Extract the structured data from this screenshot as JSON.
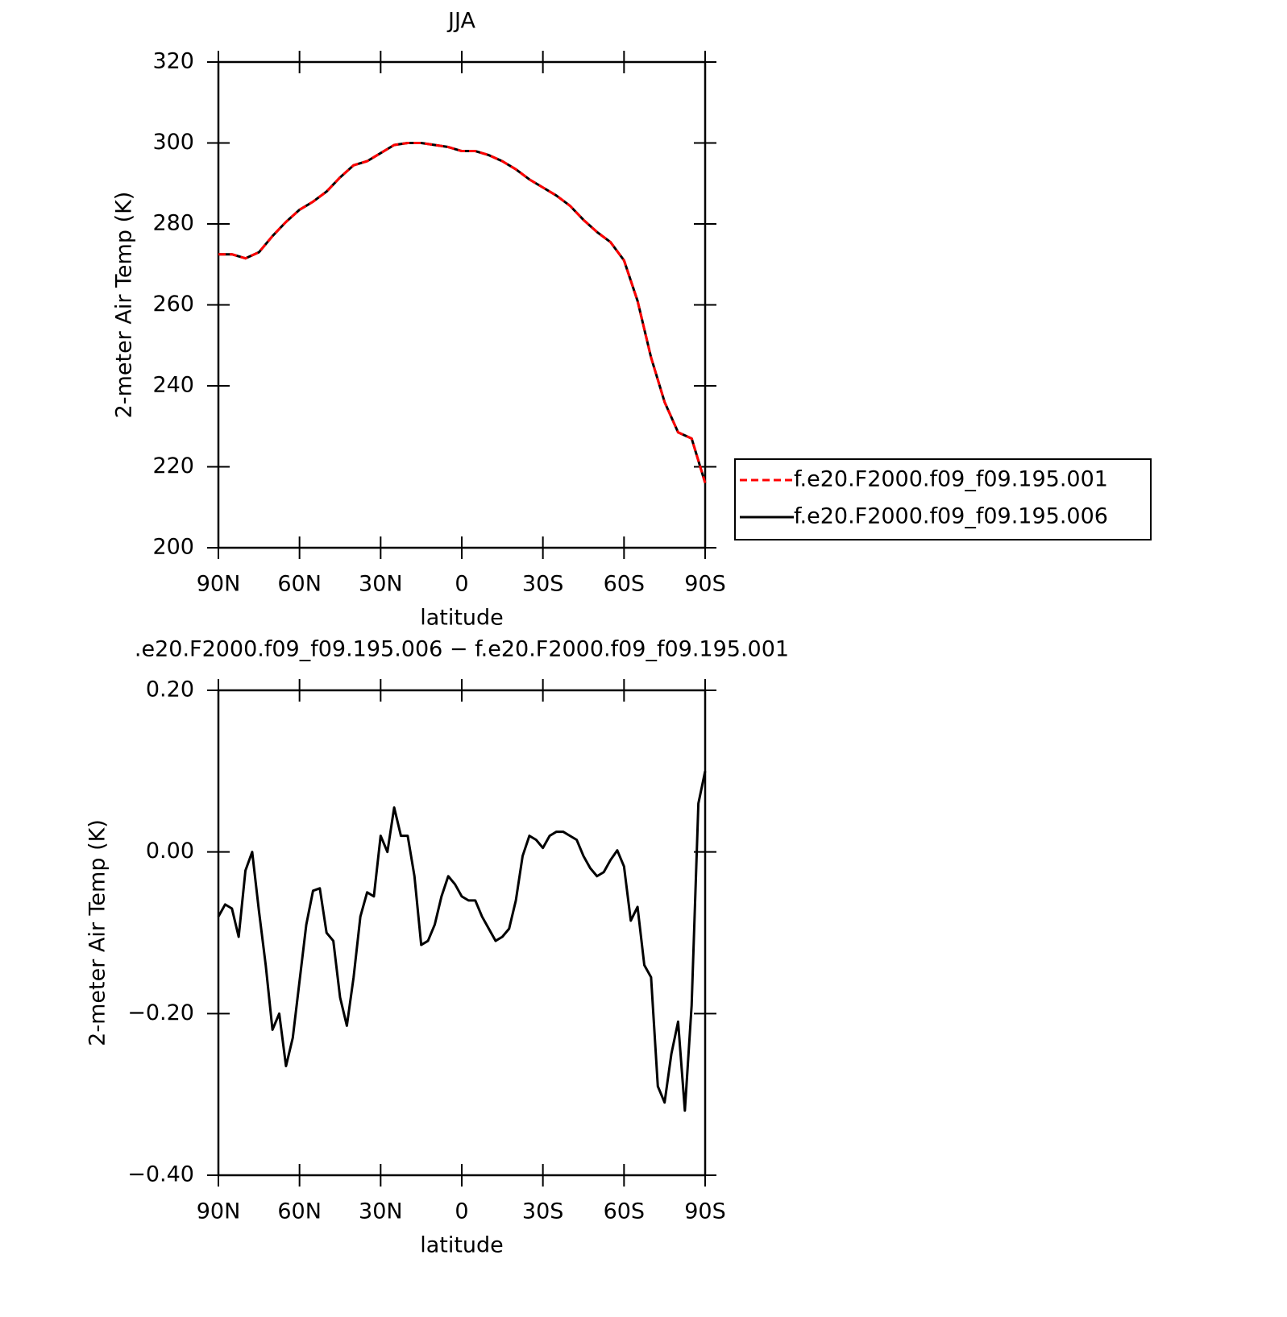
{
  "chart_data": [
    {
      "type": "line",
      "title": "JJA",
      "ylabel": "2-meter Air Temp (K)",
      "xlabel": "latitude",
      "x": [
        90,
        85,
        80,
        75,
        70,
        65,
        60,
        55,
        50,
        45,
        40,
        35,
        30,
        25,
        20,
        15,
        10,
        5,
        0,
        -5,
        -10,
        -15,
        -20,
        -25,
        -30,
        -35,
        -40,
        -45,
        -50,
        -55,
        -60,
        -65,
        -70,
        -75,
        -80,
        -85,
        -90
      ],
      "series": [
        {
          "name": "f.e20.F2000.f09_f09.195.001",
          "color": "#ff0000",
          "dash": true,
          "values": [
            272.5,
            272.5,
            271.5,
            273,
            277,
            280.5,
            283.5,
            285.5,
            288,
            291.5,
            294.5,
            295.5,
            297.5,
            299.5,
            300,
            300,
            299.5,
            299,
            298,
            298,
            297,
            295.5,
            293.5,
            291,
            289,
            287,
            284.5,
            281,
            278,
            275.5,
            271,
            261,
            247,
            236,
            228.5,
            227,
            216
          ]
        },
        {
          "name": "f.e20.F2000.f09_f09.195.006",
          "color": "#000000",
          "dash": false,
          "values": [
            272.5,
            272.5,
            271.5,
            273,
            277,
            280.5,
            283.5,
            285.5,
            288,
            291.5,
            294.5,
            295.5,
            297.5,
            299.5,
            300,
            300,
            299.5,
            299,
            298,
            298,
            297,
            295.5,
            293.5,
            291,
            289,
            287,
            284.5,
            281,
            278,
            275.5,
            271,
            261,
            247,
            236,
            228.5,
            227,
            216
          ]
        }
      ],
      "xlim": [
        90,
        -90
      ],
      "xticks": [
        {
          "value": 90,
          "label": "90N"
        },
        {
          "value": 60,
          "label": "60N"
        },
        {
          "value": 30,
          "label": "30N"
        },
        0,
        {
          "value": -30,
          "label": "30S"
        },
        {
          "value": -60,
          "label": "60S"
        },
        {
          "value": -90,
          "label": "90S"
        }
      ],
      "ylim": [
        200,
        320
      ],
      "yticks": [
        200,
        220,
        240,
        260,
        280,
        300,
        320
      ],
      "legend": "right"
    },
    {
      "type": "line",
      "title": ".e20.F2000.f09_f09.195.006 − f.e20.F2000.f09_f09.195.001",
      "ylabel": "2-meter Air Temp (K)",
      "xlabel": "latitude",
      "x": [
        90,
        87.5,
        85,
        82.5,
        80,
        77.5,
        75,
        72.5,
        70,
        67.5,
        65,
        62.5,
        60,
        57.5,
        55,
        52.5,
        50,
        47.5,
        45,
        42.5,
        40,
        37.5,
        35,
        32.5,
        30,
        27.5,
        25,
        22.5,
        20,
        17.5,
        15,
        12.5,
        10,
        7.5,
        5,
        2.5,
        0,
        -2.5,
        -5,
        -7.5,
        -10,
        -12.5,
        -15,
        -17.5,
        -20,
        -22.5,
        -25,
        -27.5,
        -30,
        -32.5,
        -35,
        -37.5,
        -40,
        -42.5,
        -45,
        -47.5,
        -50,
        -52.5,
        -55,
        -57.5,
        -60,
        -62.5,
        -65,
        -67.5,
        -70,
        -72.5,
        -75,
        -77.5,
        -80,
        -82.5,
        -85,
        -87.5,
        -90
      ],
      "series": [
        {
          "name": null,
          "color": "#000000",
          "dash": false,
          "values": [
            -0.08,
            -0.065,
            -0.07,
            -0.105,
            -0.023,
            0.0,
            -0.073,
            -0.14,
            -0.22,
            -0.2,
            -0.265,
            -0.23,
            -0.16,
            -0.09,
            -0.048,
            -0.045,
            -0.1,
            -0.11,
            -0.18,
            -0.215,
            -0.155,
            -0.08,
            -0.05,
            -0.055,
            0.02,
            0.0,
            0.055,
            0.02,
            0.02,
            -0.03,
            -0.115,
            -0.11,
            -0.09,
            -0.055,
            -0.03,
            -0.04,
            -0.055,
            -0.06,
            -0.06,
            -0.08,
            -0.095,
            -0.11,
            -0.105,
            -0.095,
            -0.06,
            -0.005,
            0.02,
            0.015,
            0.005,
            0.02,
            0.025,
            0.025,
            0.02,
            0.015,
            -0.005,
            -0.02,
            -0.03,
            -0.025,
            -0.01,
            0.002,
            -0.018,
            -0.085,
            -0.068,
            -0.14,
            -0.155,
            -0.29,
            -0.31,
            -0.25,
            -0.21,
            -0.32,
            -0.19,
            0.06,
            0.1
          ]
        }
      ],
      "xlim": [
        90,
        -90
      ],
      "xticks": [
        {
          "value": 90,
          "label": "90N"
        },
        {
          "value": 60,
          "label": "60N"
        },
        {
          "value": 30,
          "label": "30N"
        },
        0,
        {
          "value": -30,
          "label": "30S"
        },
        {
          "value": -60,
          "label": "60S"
        },
        {
          "value": -90,
          "label": "90S"
        }
      ],
      "ylim": [
        -0.4,
        0.2
      ],
      "yticks": [
        {
          "value": -0.4,
          "label": "−0.40"
        },
        {
          "value": -0.2,
          "label": "−0.20"
        },
        {
          "value": 0,
          "label": "0.00"
        },
        {
          "value": 0.2,
          "label": "0.20"
        }
      ]
    }
  ]
}
